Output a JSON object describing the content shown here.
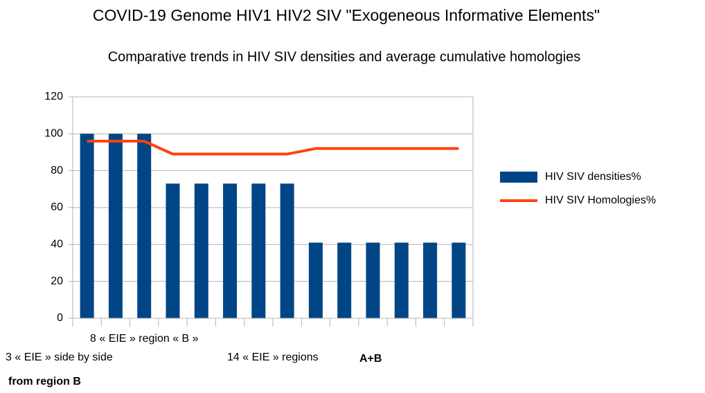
{
  "chart_data": {
    "type": "bar_line",
    "title": "COVID-19 Genome HIV1 HIV2 SIV \"Exogeneous Informative Elements\"",
    "subtitle": "Comparative trends in HIV SIV densities and average cumulative homologies",
    "categories": [
      null,
      null,
      null,
      null,
      null,
      null,
      null,
      null,
      null,
      null,
      null,
      null,
      null,
      null
    ],
    "series": [
      {
        "name": "HIV SIV densities%",
        "color": "#004586",
        "type": "bar",
        "values": [
          100,
          100,
          100,
          73,
          73,
          73,
          73,
          73,
          41,
          41,
          41,
          41,
          41,
          41
        ]
      },
      {
        "name": "HIV SIV Homologies%",
        "color": "#ff420e",
        "type": "line",
        "values": [
          96,
          96,
          96,
          89,
          89,
          89,
          89,
          89,
          92,
          92,
          92,
          92,
          92,
          92
        ]
      }
    ],
    "ylim": [
      0,
      120
    ],
    "yticks": [
      0,
      20,
      40,
      60,
      80,
      100,
      120
    ],
    "grid": true,
    "legend": "right",
    "annotations": [
      "8 « EIE » region « B »",
      "3 « EIE » side by side",
      "14 « EIE » regions",
      "A+B",
      "from region B"
    ]
  }
}
